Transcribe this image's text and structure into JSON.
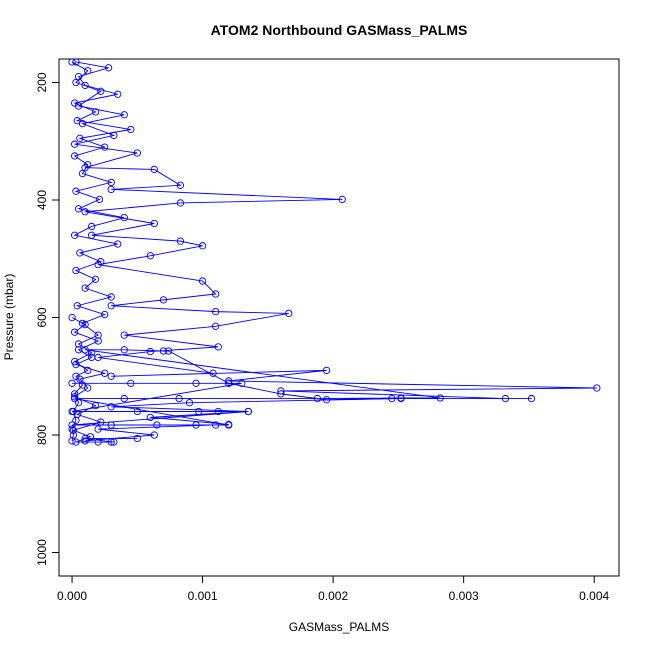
{
  "chart_data": {
    "type": "scatter",
    "title": "ATOM2 Northbound GASMass_PALMS",
    "xlabel": "GASMass_PALMS",
    "ylabel": "Pressure (mbar)",
    "xlim": [
      -0.0001,
      0.00419
    ],
    "ylim": [
      1040,
      160
    ],
    "y_reversed": true,
    "grid": false,
    "legend": "none",
    "x_ticks": [
      {
        "value": 0.0,
        "label": "0.000"
      },
      {
        "value": 0.001,
        "label": "0.001"
      },
      {
        "value": 0.002,
        "label": "0.002"
      },
      {
        "value": 0.003,
        "label": "0.003"
      },
      {
        "value": 0.004,
        "label": "0.004"
      }
    ],
    "y_ticks": [
      {
        "value": 200,
        "label": "200"
      },
      {
        "value": 400,
        "label": "400"
      },
      {
        "value": 600,
        "label": "600"
      },
      {
        "value": 800,
        "label": "800"
      },
      {
        "value": 1000,
        "label": "1000"
      }
    ],
    "series": [
      {
        "color": "#0000ff",
        "marker": "open-circle",
        "line": true,
        "points": [
          [
            0.0,
            810
          ],
          [
            1e-05,
            800
          ],
          [
            0.0,
            790
          ],
          [
            3e-05,
            775
          ],
          [
            1e-05,
            760
          ],
          [
            5e-05,
            745
          ],
          [
            2e-05,
            730
          ],
          [
            8e-05,
            715
          ],
          [
            3e-05,
            700
          ],
          [
            0.00012,
            690
          ],
          [
            2e-05,
            675
          ],
          [
            0.00015,
            660
          ],
          [
            5e-05,
            645
          ],
          [
            0.0002,
            630
          ],
          [
            8e-05,
            610
          ],
          [
            0.00025,
            595
          ],
          [
            4e-05,
            580
          ],
          [
            0.0003,
            565
          ],
          [
            0.0001,
            550
          ],
          [
            0.00018,
            535
          ],
          [
            3e-05,
            520
          ],
          [
            0.00022,
            505
          ],
          [
            6e-05,
            490
          ],
          [
            0.00035,
            475
          ],
          [
            2e-05,
            460
          ],
          [
            0.00015,
            445
          ],
          [
            0.0004,
            430
          ],
          [
            5e-05,
            415
          ],
          [
            0.00021,
            399
          ],
          [
            3e-05,
            385
          ],
          [
            0.0003,
            370
          ],
          [
            8e-05,
            355
          ],
          [
            0.00012,
            340
          ],
          [
            2e-05,
            325
          ],
          [
            0.00025,
            310
          ],
          [
            6e-05,
            295
          ],
          [
            0.00045,
            280
          ],
          [
            4e-05,
            265
          ],
          [
            0.00018,
            250
          ],
          [
            2e-05,
            235
          ],
          [
            0.00035,
            220
          ],
          [
            0.0001,
            205
          ],
          [
            5e-05,
            190
          ],
          [
            0.00028,
            175
          ],
          [
            3e-05,
            165
          ]
        ]
      },
      {
        "color": "#0000ff",
        "marker": "open-circle",
        "line": true,
        "points": [
          [
            0.0,
            165
          ],
          [
            0.00012,
            180
          ],
          [
            3e-05,
            200
          ],
          [
            0.00022,
            215
          ],
          [
            5e-05,
            240
          ],
          [
            0.0004,
            255
          ],
          [
            8e-05,
            270
          ],
          [
            0.00032,
            290
          ],
          [
            2e-05,
            305
          ],
          [
            0.0005,
            320
          ],
          [
            0.0001,
            345
          ],
          [
            0.00063,
            348
          ],
          [
            0.00083,
            375
          ],
          [
            0.0003,
            382
          ],
          [
            0.00207,
            399
          ],
          [
            0.00083,
            405
          ],
          [
            0.0001,
            420
          ],
          [
            0.00063,
            440
          ],
          [
            0.00015,
            460
          ],
          [
            0.00083,
            470
          ],
          [
            0.001,
            478
          ],
          [
            0.0006,
            495
          ],
          [
            0.0002,
            510
          ],
          [
            0.001,
            538
          ],
          [
            0.0011,
            560
          ],
          [
            0.0007,
            570
          ],
          [
            0.0003,
            580
          ],
          [
            0.0011,
            590
          ],
          [
            0.00166,
            593
          ],
          [
            0.0011,
            615
          ],
          [
            0.0004,
            630
          ],
          [
            0.00112,
            650
          ],
          [
            0.0006,
            658
          ],
          [
            0.0002,
            668
          ],
          [
            0.00108,
            695
          ],
          [
            0.0003,
            700
          ],
          [
            0.00195,
            690
          ],
          [
            0.0012,
            708
          ],
          [
            0.00402,
            720
          ],
          [
            0.0016,
            725
          ],
          [
            0.00332,
            738
          ],
          [
            0.00352,
            738
          ],
          [
            0.00252,
            738
          ],
          [
            0.0009,
            745
          ],
          [
            0.0003,
            752
          ],
          [
            0.00135,
            760
          ],
          [
            0.0006,
            770
          ],
          [
            0.0012,
            782
          ],
          [
            0.0002,
            790
          ],
          [
            0.00063,
            800
          ],
          [
            0.0001,
            810
          ]
        ]
      },
      {
        "color": "#0000ff",
        "marker": "open-circle",
        "line": true,
        "points": [
          [
            0.0,
            712
          ],
          [
            0.00045,
            712
          ],
          [
            0.00095,
            712
          ],
          [
            0.0012,
            712
          ],
          [
            0.0013,
            712
          ],
          [
            0.0,
            760
          ],
          [
            0.0005,
            760
          ],
          [
            0.00097,
            760
          ],
          [
            0.00112,
            760
          ],
          [
            0.00135,
            760
          ],
          [
            0.0,
            783
          ],
          [
            0.0003,
            783
          ],
          [
            0.00065,
            783
          ],
          [
            0.00095,
            783
          ],
          [
            0.0011,
            783
          ],
          [
            0.0012,
            783
          ],
          [
            2e-05,
            738
          ],
          [
            0.0004,
            738
          ],
          [
            0.00082,
            738
          ],
          [
            0.00188,
            738
          ],
          [
            0.00252,
            737
          ],
          [
            0.00282,
            737
          ],
          [
            0.0001,
            655
          ],
          [
            0.0004,
            655
          ],
          [
            0.0007,
            657
          ],
          [
            0.00074,
            657
          ],
          [
            0.0012,
            712
          ],
          [
            0.0016,
            730
          ],
          [
            0.00195,
            740
          ],
          [
            0.00245,
            738
          ]
        ]
      },
      {
        "color": "#0000ff",
        "marker": "open-circle",
        "line": true,
        "points": [
          [
            0.0,
            600
          ],
          [
            0.0001,
            612
          ],
          [
            2e-05,
            625
          ],
          [
            0.0002,
            640
          ],
          [
            5e-05,
            655
          ],
          [
            0.00015,
            668
          ],
          [
            3e-05,
            680
          ],
          [
            0.00025,
            695
          ],
          [
            6e-05,
            705
          ],
          [
            0.00012,
            720
          ],
          [
            2e-05,
            735
          ],
          [
            0.00018,
            750
          ],
          [
            4e-05,
            765
          ],
          [
            0.00022,
            778
          ],
          [
            1e-05,
            792
          ],
          [
            0.00014,
            803
          ],
          [
            3e-05,
            812
          ],
          [
            0.0002,
            812
          ],
          [
            0.0003,
            812
          ],
          [
            0.00032,
            812
          ],
          [
            0.0001,
            806
          ],
          [
            0.0005,
            806
          ]
        ]
      }
    ]
  }
}
